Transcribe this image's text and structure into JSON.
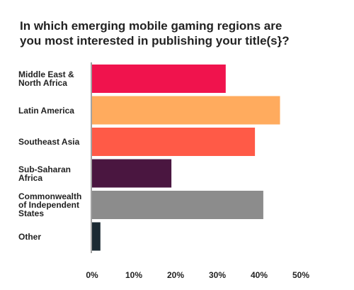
{
  "chart_data": {
    "type": "bar",
    "orientation": "horizontal",
    "title": "In which emerging mobile gaming regions are you most interested in publishing your title(s}?",
    "categories": [
      "Middle East & North Africa",
      "Latin America",
      "Southeast Asia",
      "Sub-Saharan Africa",
      "Commonwealth of Independent States",
      "Other"
    ],
    "values": [
      32,
      45,
      39,
      19,
      41,
      2
    ],
    "colors": [
      "#f0134d",
      "#ffab5e",
      "#ff5a47",
      "#4a1640",
      "#8c8c8c",
      "#1b2a33"
    ],
    "xlim": [
      0,
      50
    ],
    "xticks": [
      {
        "value": 0,
        "label": "0%"
      },
      {
        "value": 10,
        "label": "10%"
      },
      {
        "value": 20,
        "label": "20%"
      },
      {
        "value": 30,
        "label": "30%"
      },
      {
        "value": 40,
        "label": "40%"
      },
      {
        "value": 50,
        "label": "50%"
      }
    ],
    "grid": false
  }
}
